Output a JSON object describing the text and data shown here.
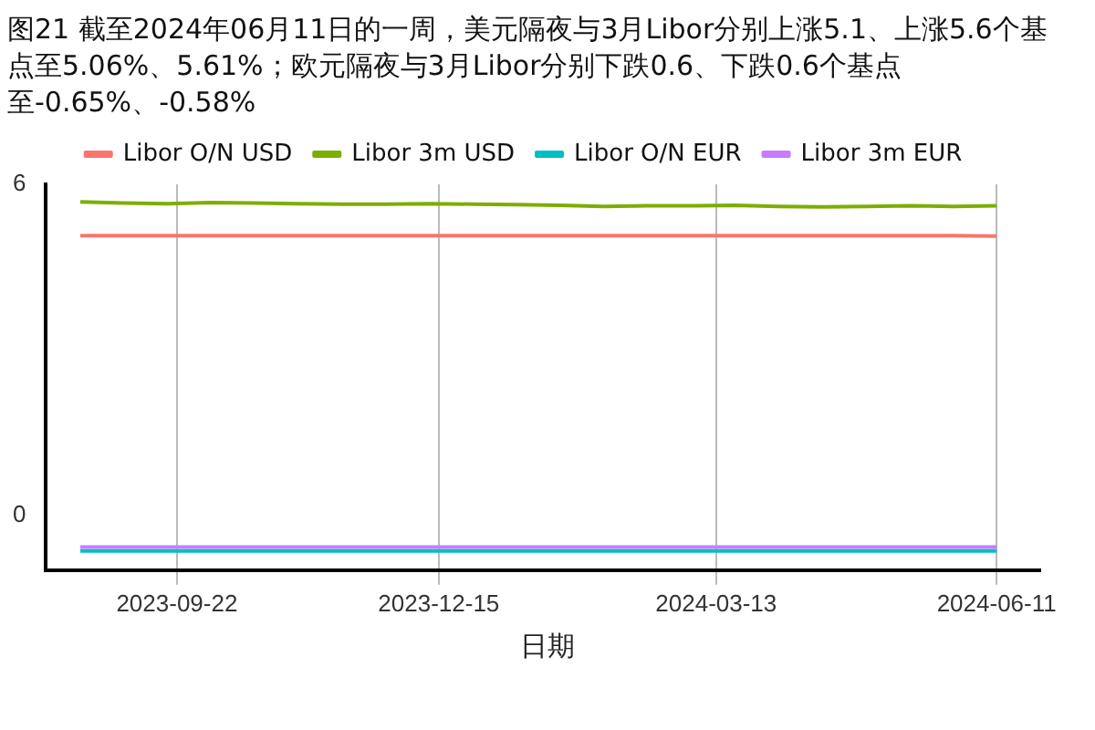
{
  "chart_data": {
    "type": "line",
    "title": "图21  截至2024年06月11日的一周，美元隔夜与3月Libor分别上涨5.1、上涨5.6个基点至5.06%、5.61%；欧元隔夜与3月Libor分别下跌0.6、下跌0.6个基点至-0.65%、-0.58%",
    "xlabel": "日期",
    "x": [
      "2023-08-22",
      "2023-09-05",
      "2023-09-19",
      "2023-10-03",
      "2023-10-17",
      "2023-10-31",
      "2023-11-14",
      "2023-11-28",
      "2023-12-12",
      "2023-12-26",
      "2024-01-09",
      "2024-01-23",
      "2024-02-06",
      "2024-02-20",
      "2024-03-05",
      "2024-03-19",
      "2024-04-02",
      "2024-04-16",
      "2024-04-30",
      "2024-05-14",
      "2024-05-28",
      "2024-06-11"
    ],
    "series": [
      {
        "name": "Libor O/N USD",
        "color": "#f8766d",
        "values": [
          5.07,
          5.07,
          5.07,
          5.07,
          5.07,
          5.07,
          5.07,
          5.07,
          5.07,
          5.07,
          5.07,
          5.07,
          5.07,
          5.07,
          5.07,
          5.07,
          5.07,
          5.07,
          5.07,
          5.07,
          5.07,
          5.06
        ]
      },
      {
        "name": "Libor 3m USD",
        "color": "#7cae00",
        "values": [
          5.68,
          5.66,
          5.65,
          5.67,
          5.66,
          5.65,
          5.64,
          5.64,
          5.65,
          5.64,
          5.63,
          5.62,
          5.6,
          5.61,
          5.61,
          5.62,
          5.6,
          5.59,
          5.6,
          5.61,
          5.6,
          5.61
        ]
      },
      {
        "name": "Libor O/N EUR",
        "color": "#00bfc4",
        "values": [
          -0.65,
          -0.65,
          -0.65,
          -0.65,
          -0.65,
          -0.65,
          -0.65,
          -0.65,
          -0.65,
          -0.65,
          -0.65,
          -0.65,
          -0.65,
          -0.65,
          -0.65,
          -0.65,
          -0.65,
          -0.65,
          -0.65,
          -0.65,
          -0.65,
          -0.65
        ]
      },
      {
        "name": "Libor 3m EUR",
        "color": "#c77cff",
        "values": [
          -0.58,
          -0.58,
          -0.58,
          -0.58,
          -0.58,
          -0.58,
          -0.58,
          -0.58,
          -0.58,
          -0.58,
          -0.58,
          -0.58,
          -0.58,
          -0.58,
          -0.58,
          -0.58,
          -0.58,
          -0.58,
          -0.58,
          -0.58,
          -0.58,
          -0.58
        ]
      }
    ],
    "xlim": [
      "2023-08-11",
      "2024-06-25"
    ],
    "xticks": [
      "2023-09-22",
      "2023-12-15",
      "2024-03-13",
      "2024-06-11"
    ],
    "ylim": [
      -1,
      6
    ],
    "yticks": [
      0,
      6
    ],
    "grid": "x",
    "legend": "top",
    "marker": "none",
    "line_style": "solid"
  }
}
